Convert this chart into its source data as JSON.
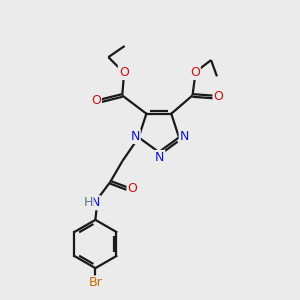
{
  "background_color": "#ebebeb",
  "bond_color": "#1a1a1a",
  "bond_width": 1.6,
  "atom_colors": {
    "N": "#1111cc",
    "O": "#cc1111",
    "Br": "#cc6600",
    "H": "#557788"
  },
  "figsize": [
    3.0,
    3.0
  ],
  "dpi": 100
}
